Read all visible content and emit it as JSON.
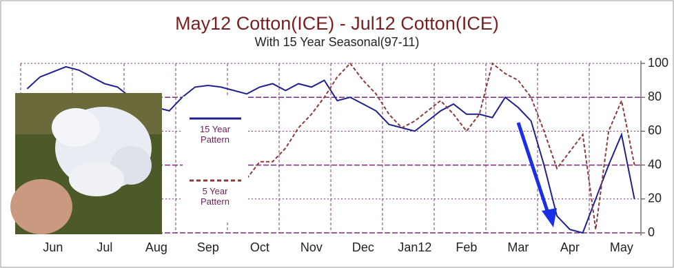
{
  "chart_data": {
    "type": "line",
    "title": "May12 Cotton(ICE) - Jul12 Cotton(ICE)",
    "subtitle": "With 15 Year Seasonal(97-11)",
    "categories": [
      null,
      null,
      "Jun",
      null,
      null,
      null,
      "Jul",
      null,
      null,
      null,
      "Aug",
      null,
      null,
      null,
      "Sep",
      null,
      null,
      null,
      "Oct",
      null,
      null,
      null,
      "Nov",
      null,
      null,
      null,
      "Dec",
      null,
      null,
      null,
      "Jan12",
      null,
      null,
      null,
      "Feb",
      null,
      null,
      null,
      "Mar",
      null,
      null,
      null,
      "Apr",
      null,
      null,
      null,
      "May",
      null
    ],
    "series": [
      {
        "name": "15 Year Pattern",
        "color": "#1f1f8f",
        "dash": false,
        "values": [
          85,
          92,
          95,
          98,
          96,
          92,
          88,
          86,
          80,
          78,
          74,
          72,
          80,
          86,
          87,
          86,
          84,
          82,
          86,
          88,
          84,
          88,
          86,
          90,
          78,
          80,
          76,
          72,
          64,
          62,
          60,
          66,
          72,
          76,
          70,
          70,
          68,
          80,
          74,
          66,
          40,
          10,
          2,
          0,
          20,
          40,
          58,
          20
        ]
      },
      {
        "name": "5 Year Pattern",
        "color": "#8b3a3a",
        "dash": true,
        "values": [
          null,
          null,
          null,
          null,
          null,
          null,
          null,
          null,
          null,
          null,
          null,
          null,
          null,
          null,
          null,
          null,
          null,
          32,
          42,
          42,
          50,
          62,
          70,
          80,
          92,
          100,
          90,
          82,
          70,
          62,
          66,
          72,
          78,
          70,
          60,
          70,
          100,
          94,
          90,
          80,
          60,
          38,
          48,
          58,
          2,
          60,
          78,
          40
        ]
      }
    ],
    "ylim": [
      0,
      100
    ],
    "yticks": [
      0,
      20,
      40,
      60,
      80,
      100
    ],
    "grid": true
  }
}
